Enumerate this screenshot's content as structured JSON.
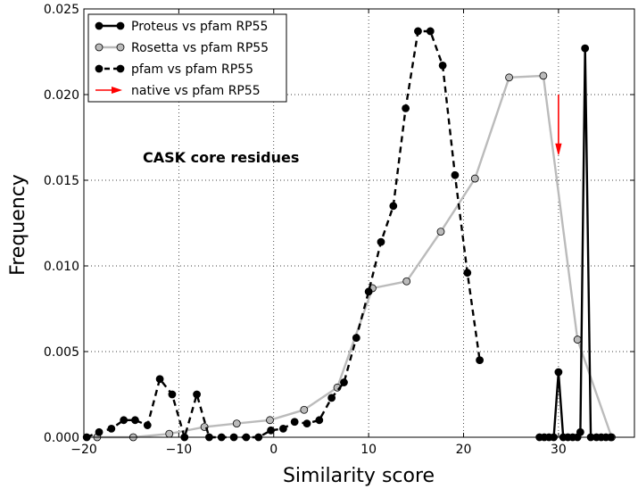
{
  "chart_data": {
    "type": "line",
    "title": "",
    "annotation": "CASK core residues",
    "xlabel": "Similarity score",
    "ylabel": "Frequency",
    "xlim": [
      -20,
      38
    ],
    "ylim": [
      0,
      0.025
    ],
    "grid": true,
    "legend_position": "top-left",
    "x_ticks": [
      -20,
      -10,
      0,
      10,
      20,
      30
    ],
    "x_tick_labels": [
      "−20",
      "−10",
      "0",
      "10",
      "20",
      "30"
    ],
    "y_ticks": [
      0,
      0.005,
      0.01,
      0.015,
      0.02,
      0.025
    ],
    "y_tick_labels": [
      "0.000",
      "0.005",
      "0.010",
      "0.015",
      "0.020",
      "0.025"
    ],
    "series": [
      {
        "name": "Proteus vs pfam RP55",
        "style": "solid",
        "color": "#000000",
        "marker_fill": "#000000",
        "x": [
          28.0,
          28.5,
          29.0,
          29.5,
          30.0,
          30.5,
          31.0,
          31.5,
          32.0,
          32.3,
          32.8,
          33.4,
          34.0,
          34.5,
          35.0,
          35.5
        ],
        "y": [
          0.0,
          0.0,
          0.0,
          0.0,
          0.0038,
          0.0,
          0.0,
          0.0,
          0.0,
          0.0003,
          0.0227,
          0.0,
          0.0,
          0.0,
          0.0,
          0.0
        ]
      },
      {
        "name": "Rosetta vs pfam RP55",
        "style": "solid",
        "color": "#bbbbbb",
        "marker_fill": "#bbbbbb",
        "x": [
          -18.6,
          -14.8,
          -11.0,
          -7.3,
          -3.9,
          -0.4,
          3.2,
          6.7,
          10.4,
          14.0,
          17.6,
          21.2,
          24.8,
          28.4,
          32.0,
          35.6
        ],
        "y": [
          0.0,
          0.0,
          0.0002,
          0.0006,
          0.0008,
          0.001,
          0.0016,
          0.0029,
          0.0087,
          0.0091,
          0.012,
          0.0151,
          0.021,
          0.0211,
          0.0057,
          0.0
        ]
      },
      {
        "name": "pfam vs pfam RP55",
        "style": "dashed",
        "color": "#000000",
        "marker_fill": "#000000",
        "x": [
          -19.7,
          -18.4,
          -17.1,
          -15.8,
          -14.6,
          -13.3,
          -12.0,
          -10.7,
          -9.4,
          -8.1,
          -6.8,
          -5.5,
          -4.2,
          -2.9,
          -1.6,
          -0.3,
          1.0,
          2.2,
          3.5,
          4.8,
          6.1,
          7.4,
          8.7,
          10.0,
          11.3,
          12.6,
          13.9,
          15.2,
          16.5,
          17.8,
          19.1,
          20.4,
          21.7
        ],
        "y": [
          0.0,
          0.0003,
          0.0005,
          0.001,
          0.001,
          0.0007,
          0.0034,
          0.0025,
          0.0,
          0.0025,
          0.0,
          0.0,
          0.0,
          0.0,
          0.0,
          0.0004,
          0.0005,
          0.0009,
          0.0008,
          0.001,
          0.0023,
          0.0032,
          0.0058,
          0.0085,
          0.0114,
          0.0135,
          0.0192,
          0.0237,
          0.0237,
          0.0217,
          0.0153,
          0.0096,
          0.0045
        ]
      },
      {
        "name": "native vs pfam RP55",
        "style": "arrow",
        "color": "#ff0000",
        "x": [
          30.0
        ],
        "y": [
          0.02
        ],
        "arrow_to_y": 0.0165
      }
    ]
  }
}
